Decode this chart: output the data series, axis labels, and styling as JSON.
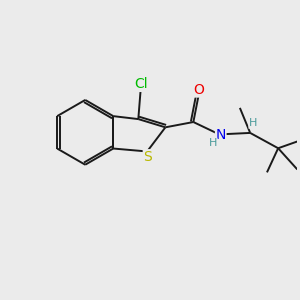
{
  "bg_color": "#ebebeb",
  "bond_color": "#1a1a1a",
  "bond_width": 1.4,
  "atom_colors": {
    "S": "#b8b800",
    "N": "#0000ee",
    "O": "#ee0000",
    "Cl": "#00bb00",
    "H": "#4a9a9a"
  },
  "font_size": 9.5,
  "figsize": [
    3.0,
    3.0
  ],
  "dpi": 100
}
